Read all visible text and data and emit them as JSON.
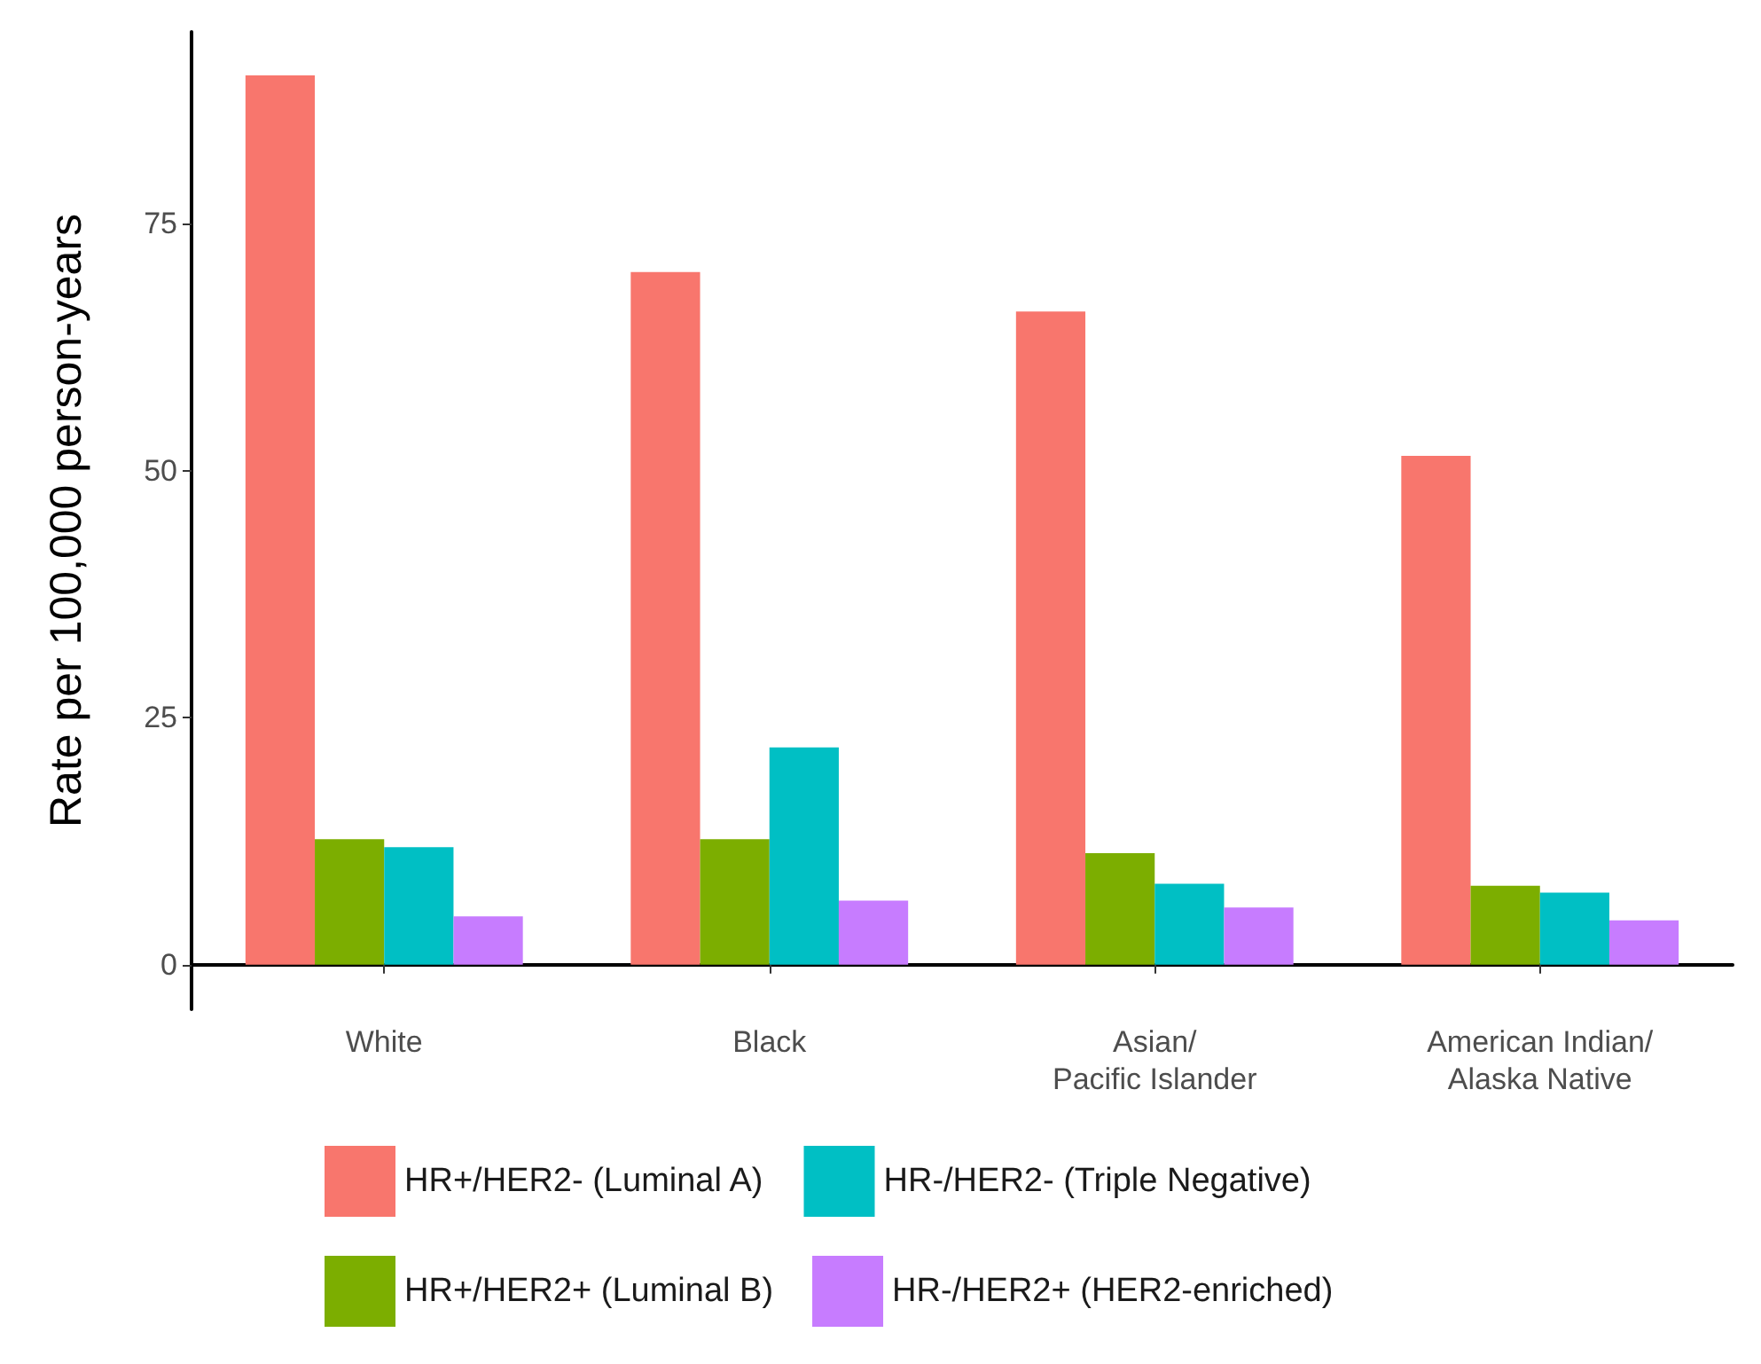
{
  "chart_data": {
    "type": "bar",
    "ylabel": "Rate per 100,000 person-years",
    "categories": [
      "White",
      "Black",
      "Asian/\nPacific Islander",
      "American Indian/\nAlaska Native"
    ],
    "series": [
      {
        "name": "HR+/HER2- (Luminal A)",
        "color": "#f8766d",
        "values": [
          90.0,
          70.1,
          66.1,
          51.5
        ]
      },
      {
        "name": "HR+/HER2+ (Luminal B)",
        "color": "#7cae00",
        "values": [
          12.7,
          12.7,
          11.3,
          8.0
        ]
      },
      {
        "name": "HR-/HER2- (Triple Negative)",
        "color": "#00bfc4",
        "values": [
          11.9,
          22.0,
          8.2,
          7.3
        ]
      },
      {
        "name": "HR-/HER2+ (HER2-enriched)",
        "color": "#c77cff",
        "values": [
          4.9,
          6.5,
          5.8,
          4.5
        ]
      }
    ],
    "ylim": [
      -4.5,
      94.4
    ],
    "yticks": [
      0,
      25,
      50,
      75
    ],
    "grid": false,
    "legend": "bottom"
  }
}
